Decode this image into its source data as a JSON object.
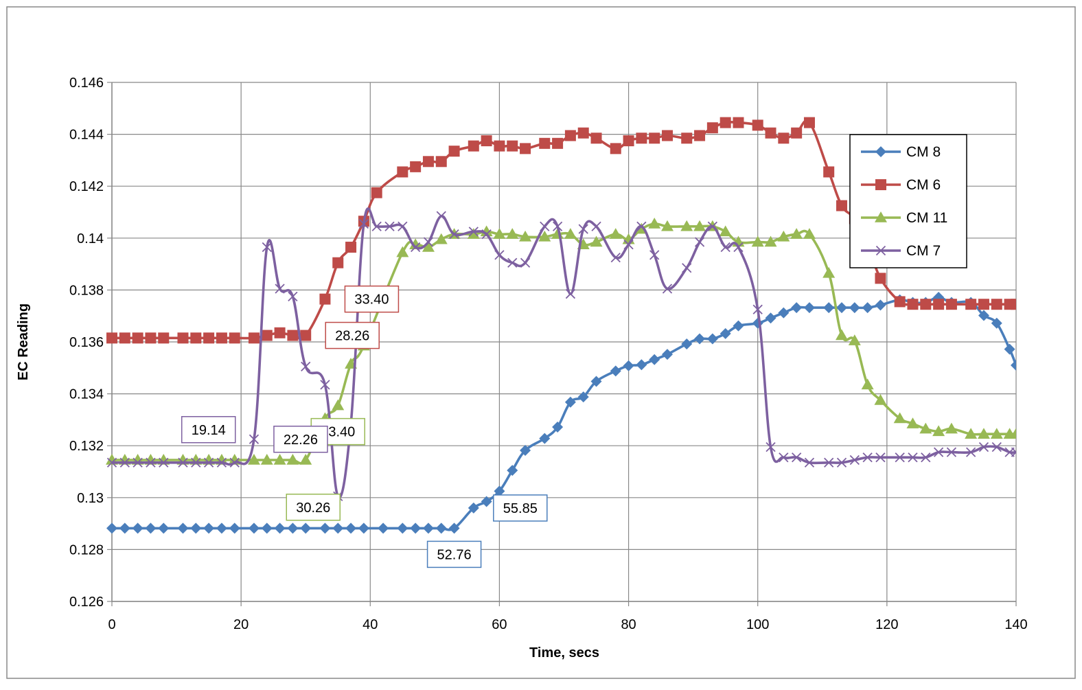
{
  "chart_data": {
    "type": "line",
    "title": "",
    "xlabel": "Time, secs",
    "ylabel": "EC Reading",
    "xlim": [
      0,
      140
    ],
    "ylim": [
      0.126,
      0.146
    ],
    "x_ticks": [
      "0",
      "20",
      "40",
      "60",
      "80",
      "100",
      "120",
      "140"
    ],
    "y_ticks": [
      "0.126",
      "0.128",
      "0.13",
      "0.132",
      "0.134",
      "0.136",
      "0.138",
      "0.14",
      "0.142",
      "0.144",
      "0.146"
    ],
    "grid": true,
    "legend_position": "right",
    "series": [
      {
        "name": "CM 8",
        "color": "#4a7ebb",
        "marker": "diamond",
        "points": [
          [
            0,
            0.12882
          ],
          [
            2,
            0.12882
          ],
          [
            4,
            0.12882
          ],
          [
            6,
            0.12882
          ],
          [
            8,
            0.12882
          ],
          [
            11,
            0.12882
          ],
          [
            13,
            0.12882
          ],
          [
            15,
            0.12882
          ],
          [
            17,
            0.12882
          ],
          [
            19,
            0.12882
          ],
          [
            22,
            0.12882
          ],
          [
            24,
            0.12882
          ],
          [
            26,
            0.12882
          ],
          [
            28,
            0.12882
          ],
          [
            30,
            0.12882
          ],
          [
            33,
            0.12882
          ],
          [
            35,
            0.12882
          ],
          [
            37,
            0.12882
          ],
          [
            39,
            0.12882
          ],
          [
            42,
            0.12882
          ],
          [
            45,
            0.12882
          ],
          [
            47,
            0.12882
          ],
          [
            49,
            0.12882
          ],
          [
            51,
            0.12882
          ],
          [
            53,
            0.12882
          ],
          [
            56,
            0.1296
          ],
          [
            58,
            0.12985
          ],
          [
            60,
            0.13025
          ],
          [
            62,
            0.13105
          ],
          [
            64,
            0.13182
          ],
          [
            67,
            0.13228
          ],
          [
            69,
            0.13272
          ],
          [
            71,
            0.13368
          ],
          [
            73,
            0.13388
          ],
          [
            75,
            0.13448
          ],
          [
            78,
            0.13488
          ],
          [
            80,
            0.13508
          ],
          [
            82,
            0.13512
          ],
          [
            84,
            0.13532
          ],
          [
            86,
            0.13552
          ],
          [
            89,
            0.13592
          ],
          [
            91,
            0.13612
          ],
          [
            93,
            0.13612
          ],
          [
            95,
            0.13632
          ],
          [
            97,
            0.13662
          ],
          [
            100,
            0.13672
          ],
          [
            102,
            0.13692
          ],
          [
            104,
            0.13712
          ],
          [
            106,
            0.13732
          ],
          [
            108,
            0.13732
          ],
          [
            111,
            0.13732
          ],
          [
            113,
            0.13732
          ],
          [
            115,
            0.13732
          ],
          [
            117,
            0.13732
          ],
          [
            119,
            0.13742
          ],
          [
            122,
            0.13762
          ],
          [
            124,
            0.13752
          ],
          [
            126,
            0.13752
          ],
          [
            128,
            0.13772
          ],
          [
            130,
            0.13752
          ],
          [
            133,
            0.13752
          ],
          [
            135,
            0.13702
          ],
          [
            137,
            0.13672
          ],
          [
            139,
            0.13572
          ],
          [
            140,
            0.1351
          ]
        ],
        "labels": [
          {
            "x": 53,
            "y": 0.12882,
            "text": "52.76",
            "pos": "below"
          },
          {
            "x": 56,
            "y": 0.1296,
            "text": "55.85",
            "pos": "right"
          }
        ]
      },
      {
        "name": "CM 6",
        "color": "#be4b48",
        "marker": "square",
        "points": [
          [
            0,
            0.13615
          ],
          [
            2,
            0.13615
          ],
          [
            4,
            0.13615
          ],
          [
            6,
            0.13615
          ],
          [
            8,
            0.13615
          ],
          [
            11,
            0.13615
          ],
          [
            13,
            0.13615
          ],
          [
            15,
            0.13615
          ],
          [
            17,
            0.13615
          ],
          [
            19,
            0.13615
          ],
          [
            22,
            0.13615
          ],
          [
            24,
            0.13625
          ],
          [
            26,
            0.13635
          ],
          [
            28,
            0.13625
          ],
          [
            30,
            0.13625
          ],
          [
            33,
            0.13765
          ],
          [
            35,
            0.13905
          ],
          [
            37,
            0.13965
          ],
          [
            39,
            0.14065
          ],
          [
            41,
            0.14175
          ],
          [
            45,
            0.14255
          ],
          [
            47,
            0.14275
          ],
          [
            49,
            0.14295
          ],
          [
            51,
            0.14295
          ],
          [
            53,
            0.14335
          ],
          [
            56,
            0.14355
          ],
          [
            58,
            0.14375
          ],
          [
            60,
            0.14355
          ],
          [
            62,
            0.14355
          ],
          [
            64,
            0.14345
          ],
          [
            67,
            0.14365
          ],
          [
            69,
            0.14365
          ],
          [
            71,
            0.14395
          ],
          [
            73,
            0.14405
          ],
          [
            75,
            0.14385
          ],
          [
            78,
            0.14345
          ],
          [
            80,
            0.14375
          ],
          [
            82,
            0.14385
          ],
          [
            84,
            0.14385
          ],
          [
            86,
            0.14395
          ],
          [
            89,
            0.14385
          ],
          [
            91,
            0.14395
          ],
          [
            93,
            0.14425
          ],
          [
            95,
            0.14445
          ],
          [
            97,
            0.14445
          ],
          [
            100,
            0.14435
          ],
          [
            102,
            0.14405
          ],
          [
            104,
            0.14385
          ],
          [
            106,
            0.14405
          ],
          [
            108,
            0.14445
          ],
          [
            111,
            0.14255
          ],
          [
            113,
            0.14125
          ],
          [
            115,
            0.14075
          ],
          [
            117,
            0.13975
          ],
          [
            119,
            0.13845
          ],
          [
            122,
            0.13755
          ],
          [
            124,
            0.13745
          ],
          [
            126,
            0.13745
          ],
          [
            128,
            0.13745
          ],
          [
            130,
            0.13745
          ],
          [
            133,
            0.13745
          ],
          [
            135,
            0.13745
          ],
          [
            137,
            0.13745
          ],
          [
            139,
            0.13745
          ],
          [
            140,
            0.13745
          ]
        ],
        "labels": [
          {
            "x": 30,
            "y": 0.13625,
            "text": "28.26",
            "pos": "right"
          },
          {
            "x": 33,
            "y": 0.13765,
            "text": "33.40",
            "pos": "right"
          }
        ]
      },
      {
        "name": "CM 11",
        "color": "#98b954",
        "marker": "triangle",
        "points": [
          [
            0,
            0.13145
          ],
          [
            2,
            0.13145
          ],
          [
            4,
            0.13145
          ],
          [
            6,
            0.13145
          ],
          [
            8,
            0.13145
          ],
          [
            11,
            0.13145
          ],
          [
            13,
            0.13145
          ],
          [
            15,
            0.13145
          ],
          [
            17,
            0.13145
          ],
          [
            19,
            0.13145
          ],
          [
            22,
            0.13145
          ],
          [
            24,
            0.13145
          ],
          [
            26,
            0.13145
          ],
          [
            28,
            0.13145
          ],
          [
            30,
            0.13145
          ],
          [
            33,
            0.13305
          ],
          [
            35,
            0.13355
          ],
          [
            37,
            0.13515
          ],
          [
            39,
            0.13585
          ],
          [
            45,
            0.13945
          ],
          [
            47,
            0.13975
          ],
          [
            49,
            0.13965
          ],
          [
            51,
            0.13995
          ],
          [
            53,
            0.14015
          ],
          [
            56,
            0.14015
          ],
          [
            58,
            0.14025
          ],
          [
            60,
            0.14015
          ],
          [
            62,
            0.14015
          ],
          [
            64,
            0.14005
          ],
          [
            67,
            0.14005
          ],
          [
            69,
            0.14015
          ],
          [
            71,
            0.14015
          ],
          [
            73,
            0.13975
          ],
          [
            75,
            0.13985
          ],
          [
            78,
            0.14015
          ],
          [
            80,
            0.13995
          ],
          [
            82,
            0.14035
          ],
          [
            84,
            0.14055
          ],
          [
            86,
            0.14045
          ],
          [
            89,
            0.14045
          ],
          [
            91,
            0.14045
          ],
          [
            93,
            0.14045
          ],
          [
            95,
            0.14025
          ],
          [
            97,
            0.13985
          ],
          [
            100,
            0.13985
          ],
          [
            102,
            0.13985
          ],
          [
            104,
            0.14005
          ],
          [
            106,
            0.14015
          ],
          [
            108,
            0.14015
          ],
          [
            111,
            0.13865
          ],
          [
            113,
            0.13625
          ],
          [
            115,
            0.13605
          ],
          [
            117,
            0.13435
          ],
          [
            119,
            0.13375
          ],
          [
            122,
            0.13305
          ],
          [
            124,
            0.13285
          ],
          [
            126,
            0.13265
          ],
          [
            128,
            0.13255
          ],
          [
            130,
            0.13265
          ],
          [
            133,
            0.13245
          ],
          [
            135,
            0.13245
          ],
          [
            137,
            0.13245
          ],
          [
            139,
            0.13245
          ],
          [
            140,
            0.13245
          ]
        ],
        "labels": [
          {
            "x": 35,
            "y": 0.13355,
            "text": "33.40",
            "pos": "below"
          },
          {
            "x": 35,
            "y": 0.1309,
            "text": "30.26",
            "pos": "belowleft"
          }
        ]
      },
      {
        "name": "CM 7",
        "color": "#7d60a0",
        "marker": "x",
        "points": [
          [
            0,
            0.13135
          ],
          [
            2,
            0.13135
          ],
          [
            4,
            0.13135
          ],
          [
            6,
            0.13135
          ],
          [
            8,
            0.13135
          ],
          [
            11,
            0.13135
          ],
          [
            13,
            0.13135
          ],
          [
            15,
            0.13135
          ],
          [
            17,
            0.13135
          ],
          [
            19,
            0.13135
          ],
          [
            22,
            0.13225
          ],
          [
            24,
            0.13965
          ],
          [
            26,
            0.13805
          ],
          [
            28,
            0.13775
          ],
          [
            30,
            0.13505
          ],
          [
            33,
            0.13435
          ],
          [
            35,
            0.13005
          ],
          [
            37,
            0.13285
          ],
          [
            39,
            0.14055
          ],
          [
            41,
            0.14045
          ],
          [
            43,
            0.14045
          ],
          [
            45,
            0.14045
          ],
          [
            47,
            0.13965
          ],
          [
            49,
            0.13985
          ],
          [
            51,
            0.14085
          ],
          [
            53,
            0.14015
          ],
          [
            56,
            0.14025
          ],
          [
            58,
            0.14015
          ],
          [
            60,
            0.13935
          ],
          [
            62,
            0.13905
          ],
          [
            64,
            0.13905
          ],
          [
            67,
            0.14045
          ],
          [
            69,
            0.14045
          ],
          [
            71,
            0.13785
          ],
          [
            73,
            0.14035
          ],
          [
            75,
            0.14045
          ],
          [
            78,
            0.13925
          ],
          [
            80,
            0.13975
          ],
          [
            82,
            0.14045
          ],
          [
            84,
            0.13935
          ],
          [
            86,
            0.13805
          ],
          [
            89,
            0.13885
          ],
          [
            91,
            0.13985
          ],
          [
            93,
            0.14045
          ],
          [
            95,
            0.13965
          ],
          [
            97,
            0.13965
          ],
          [
            100,
            0.13725
          ],
          [
            102,
            0.13195
          ],
          [
            104,
            0.13155
          ],
          [
            106,
            0.13155
          ],
          [
            108,
            0.13135
          ],
          [
            111,
            0.13135
          ],
          [
            113,
            0.13135
          ],
          [
            115,
            0.13145
          ],
          [
            117,
            0.13155
          ],
          [
            119,
            0.13155
          ],
          [
            122,
            0.13155
          ],
          [
            124,
            0.13155
          ],
          [
            126,
            0.13155
          ],
          [
            128,
            0.13175
          ],
          [
            130,
            0.13175
          ],
          [
            133,
            0.13175
          ],
          [
            135,
            0.13195
          ],
          [
            137,
            0.13195
          ],
          [
            139,
            0.13175
          ],
          [
            140,
            0.13175
          ]
        ],
        "labels": [
          {
            "x": 19,
            "y": 0.13135,
            "text": "19.14",
            "pos": "upleft"
          },
          {
            "x": 22,
            "y": 0.13225,
            "text": "22.26",
            "pos": "right"
          }
        ]
      }
    ]
  }
}
